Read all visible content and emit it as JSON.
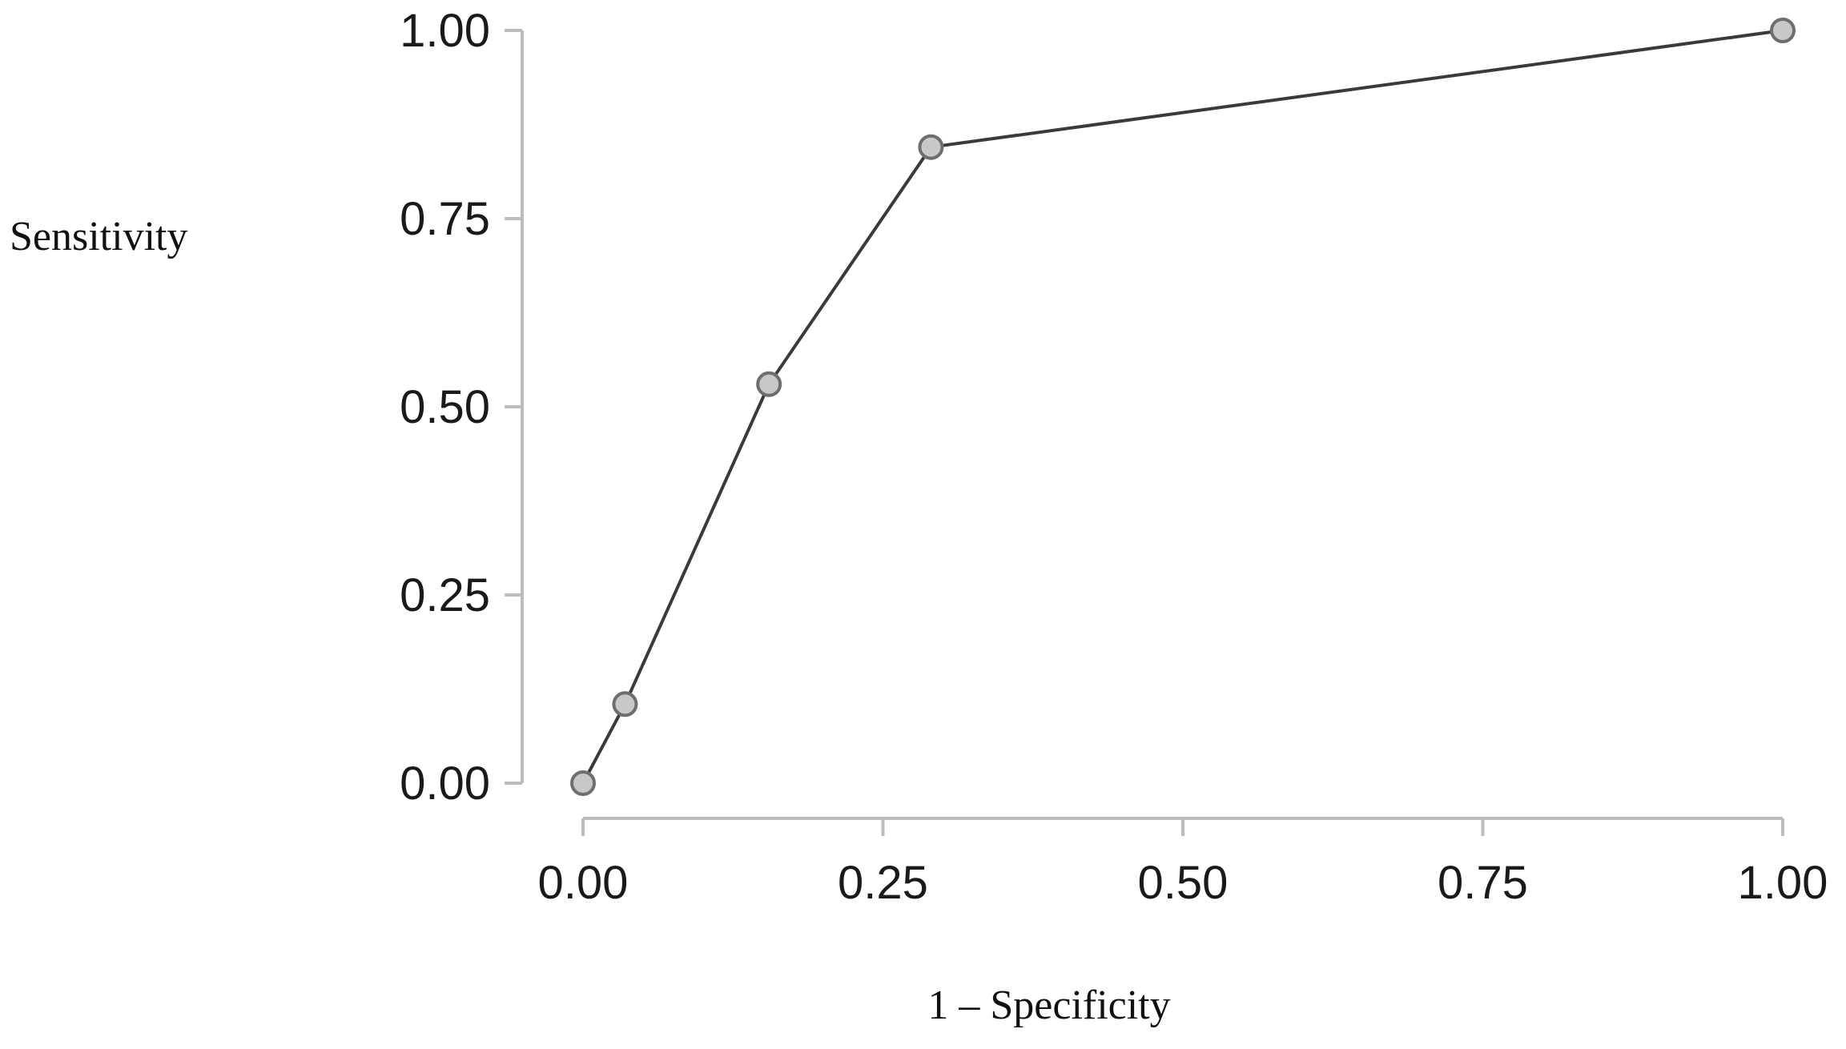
{
  "chart_data": {
    "type": "line",
    "title": "",
    "xlabel": "1 – Specificity",
    "ylabel": "Sensitivity",
    "xlim": [
      0,
      1
    ],
    "ylim": [
      0,
      1
    ],
    "xticks": [
      "0.00",
      "0.25",
      "0.50",
      "0.75",
      "1.00"
    ],
    "yticks": [
      "0.00",
      "0.25",
      "0.50",
      "0.75",
      "1.00"
    ],
    "grid": false,
    "legend": "none",
    "series": [
      {
        "x": [
          0.0,
          0.035,
          0.155,
          0.29,
          1.0
        ],
        "y": [
          0.0,
          0.105,
          0.53,
          0.845,
          1.0
        ],
        "line_color": "#3a3a3a",
        "marker_fill": "#c8c8c8",
        "marker_stroke": "#6e6e6e"
      }
    ]
  }
}
